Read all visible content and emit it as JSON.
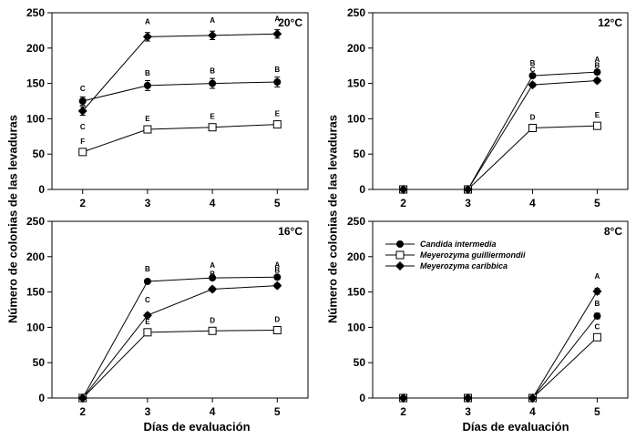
{
  "figure": {
    "ylabel": "Número de colonias de las levaduras",
    "xlabel": "Días de evaluación"
  },
  "chart_data": [
    {
      "type": "line",
      "panel_label": "20°C",
      "x": [
        2,
        3,
        4,
        5
      ],
      "ylim": [
        0,
        250
      ],
      "yticks": [
        0,
        50,
        100,
        150,
        200,
        250
      ],
      "series": [
        {
          "name": "Candida intermedia",
          "marker": "circle",
          "values": [
            125,
            147,
            150,
            152
          ],
          "errors": [
            6,
            7,
            7,
            7
          ],
          "letters": [
            "C",
            "B",
            "B",
            "B"
          ]
        },
        {
          "name": "Meyerozyma guilliermondii",
          "marker": "square-open",
          "values": [
            53,
            85,
            88,
            92
          ],
          "errors": [
            3,
            3,
            3,
            3
          ],
          "letters": [
            "F",
            "E",
            "E",
            "E"
          ]
        },
        {
          "name": "Meyerozyma caribbica",
          "marker": "diamond",
          "values": [
            111,
            216,
            218,
            220
          ],
          "errors": [
            6,
            6,
            6,
            6
          ],
          "letters": [
            "C",
            "A",
            "A",
            "A"
          ]
        }
      ]
    },
    {
      "type": "line",
      "panel_label": "12°C",
      "x": [
        2,
        3,
        4,
        5
      ],
      "ylim": [
        0,
        250
      ],
      "yticks": [
        0,
        50,
        100,
        150,
        200,
        250
      ],
      "series": [
        {
          "name": "Candida intermedia",
          "marker": "circle",
          "values": [
            0,
            0,
            161,
            166
          ],
          "errors": [
            0,
            0,
            3,
            3
          ],
          "letters": [
            "",
            "",
            "B",
            "A"
          ]
        },
        {
          "name": "Meyerozyma guilliermondii",
          "marker": "square-open",
          "values": [
            0,
            0,
            87,
            90
          ],
          "errors": [
            0,
            0,
            3,
            3
          ],
          "letters": [
            "",
            "",
            "D",
            "E"
          ]
        },
        {
          "name": "Meyerozyma caribbica",
          "marker": "diamond",
          "values": [
            0,
            0,
            148,
            154
          ],
          "errors": [
            0,
            0,
            3,
            3
          ],
          "letters": [
            "",
            "",
            "C",
            "B"
          ]
        }
      ]
    },
    {
      "type": "line",
      "panel_label": "16°C",
      "x": [
        2,
        3,
        4,
        5
      ],
      "ylim": [
        0,
        250
      ],
      "yticks": [
        0,
        50,
        100,
        150,
        200,
        250
      ],
      "series": [
        {
          "name": "Candida intermedia",
          "marker": "circle",
          "values": [
            0,
            165,
            170,
            171
          ],
          "errors": [
            0,
            3,
            3,
            3
          ],
          "letters": [
            "",
            "B",
            "A",
            "A"
          ]
        },
        {
          "name": "Meyerozyma guilliermondii",
          "marker": "square-open",
          "values": [
            0,
            93,
            95,
            96
          ],
          "errors": [
            0,
            3,
            3,
            3
          ],
          "letters": [
            "",
            "E",
            "D",
            "D"
          ]
        },
        {
          "name": "Meyerozyma caribbica",
          "marker": "diamond",
          "values": [
            0,
            117,
            154,
            159
          ],
          "errors": [
            0,
            3,
            3,
            3
          ],
          "letters": [
            "",
            "C",
            "B",
            "B"
          ]
        }
      ]
    },
    {
      "type": "line",
      "panel_label": "8°C",
      "x": [
        2,
        3,
        4,
        5
      ],
      "ylim": [
        0,
        250
      ],
      "yticks": [
        0,
        50,
        100,
        150,
        200,
        250
      ],
      "legend": {
        "position": "top-left",
        "entries": [
          "Candida intermedia",
          "Meyerozyma guilliermondii",
          "Meyerozyma caribbica"
        ]
      },
      "series": [
        {
          "name": "Candida intermedia",
          "marker": "circle",
          "values": [
            0,
            0,
            0,
            116
          ],
          "errors": [
            0,
            0,
            0,
            4
          ],
          "letters": [
            "",
            "",
            "",
            "B"
          ]
        },
        {
          "name": "Meyerozyma guilliermondii",
          "marker": "square-open",
          "values": [
            0,
            0,
            0,
            86
          ],
          "errors": [
            0,
            0,
            0,
            3
          ],
          "letters": [
            "",
            "",
            "",
            "C"
          ]
        },
        {
          "name": "Meyerozyma caribbica",
          "marker": "diamond",
          "values": [
            0,
            0,
            0,
            151
          ],
          "errors": [
            0,
            0,
            0,
            4
          ],
          "letters": [
            "",
            "",
            "",
            "A"
          ]
        }
      ]
    }
  ]
}
